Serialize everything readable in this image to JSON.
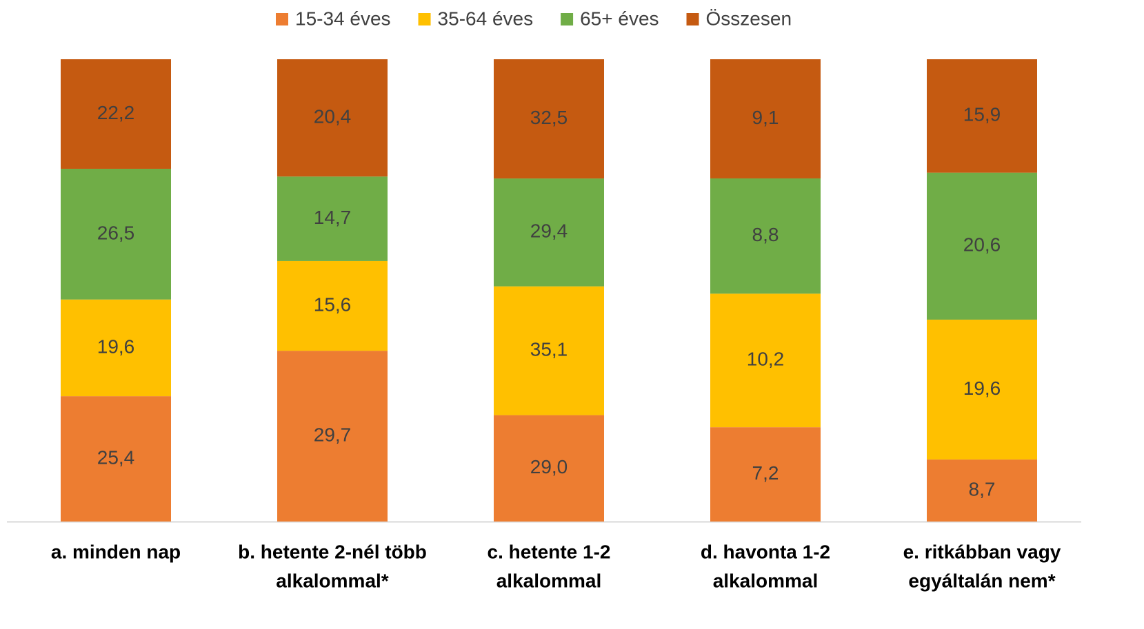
{
  "chart_data": {
    "type": "bar",
    "stack": "percent",
    "categories": [
      [
        "a. minden nap"
      ],
      [
        "b. hetente 2-nél több",
        "alkalommal*"
      ],
      [
        "c. hetente 1-2",
        "alkalommal"
      ],
      [
        "d. havonta 1-2",
        "alkalommal"
      ],
      [
        "e. ritkábban vagy",
        "egyáltalán nem*"
      ]
    ],
    "series": [
      {
        "name": "15-34 éves",
        "color": "#ED7D31",
        "values": [
          25.4,
          29.7,
          29.0,
          7.2,
          8.7
        ],
        "value_labels": [
          "25,4",
          "29,7",
          "29,0",
          "7,2",
          "8,7"
        ]
      },
      {
        "name": "35-64 éves",
        "color": "#FFC000",
        "values": [
          19.6,
          15.6,
          35.1,
          10.2,
          19.6
        ],
        "value_labels": [
          "19,6",
          "15,6",
          "35,1",
          "10,2",
          "19,6"
        ]
      },
      {
        "name": "65+ éves",
        "color": "#70AD47",
        "values": [
          26.5,
          14.7,
          29.4,
          8.8,
          20.6
        ],
        "value_labels": [
          "26,5",
          "14,7",
          "29,4",
          "8,8",
          "20,6"
        ]
      },
      {
        "name": "Összesen",
        "color": "#C55A11",
        "values": [
          22.2,
          20.4,
          32.5,
          9.1,
          15.9
        ],
        "value_labels": [
          "22,2",
          "20,4",
          "32,5",
          "9,1",
          "15,9"
        ]
      }
    ],
    "legend": "top"
  }
}
